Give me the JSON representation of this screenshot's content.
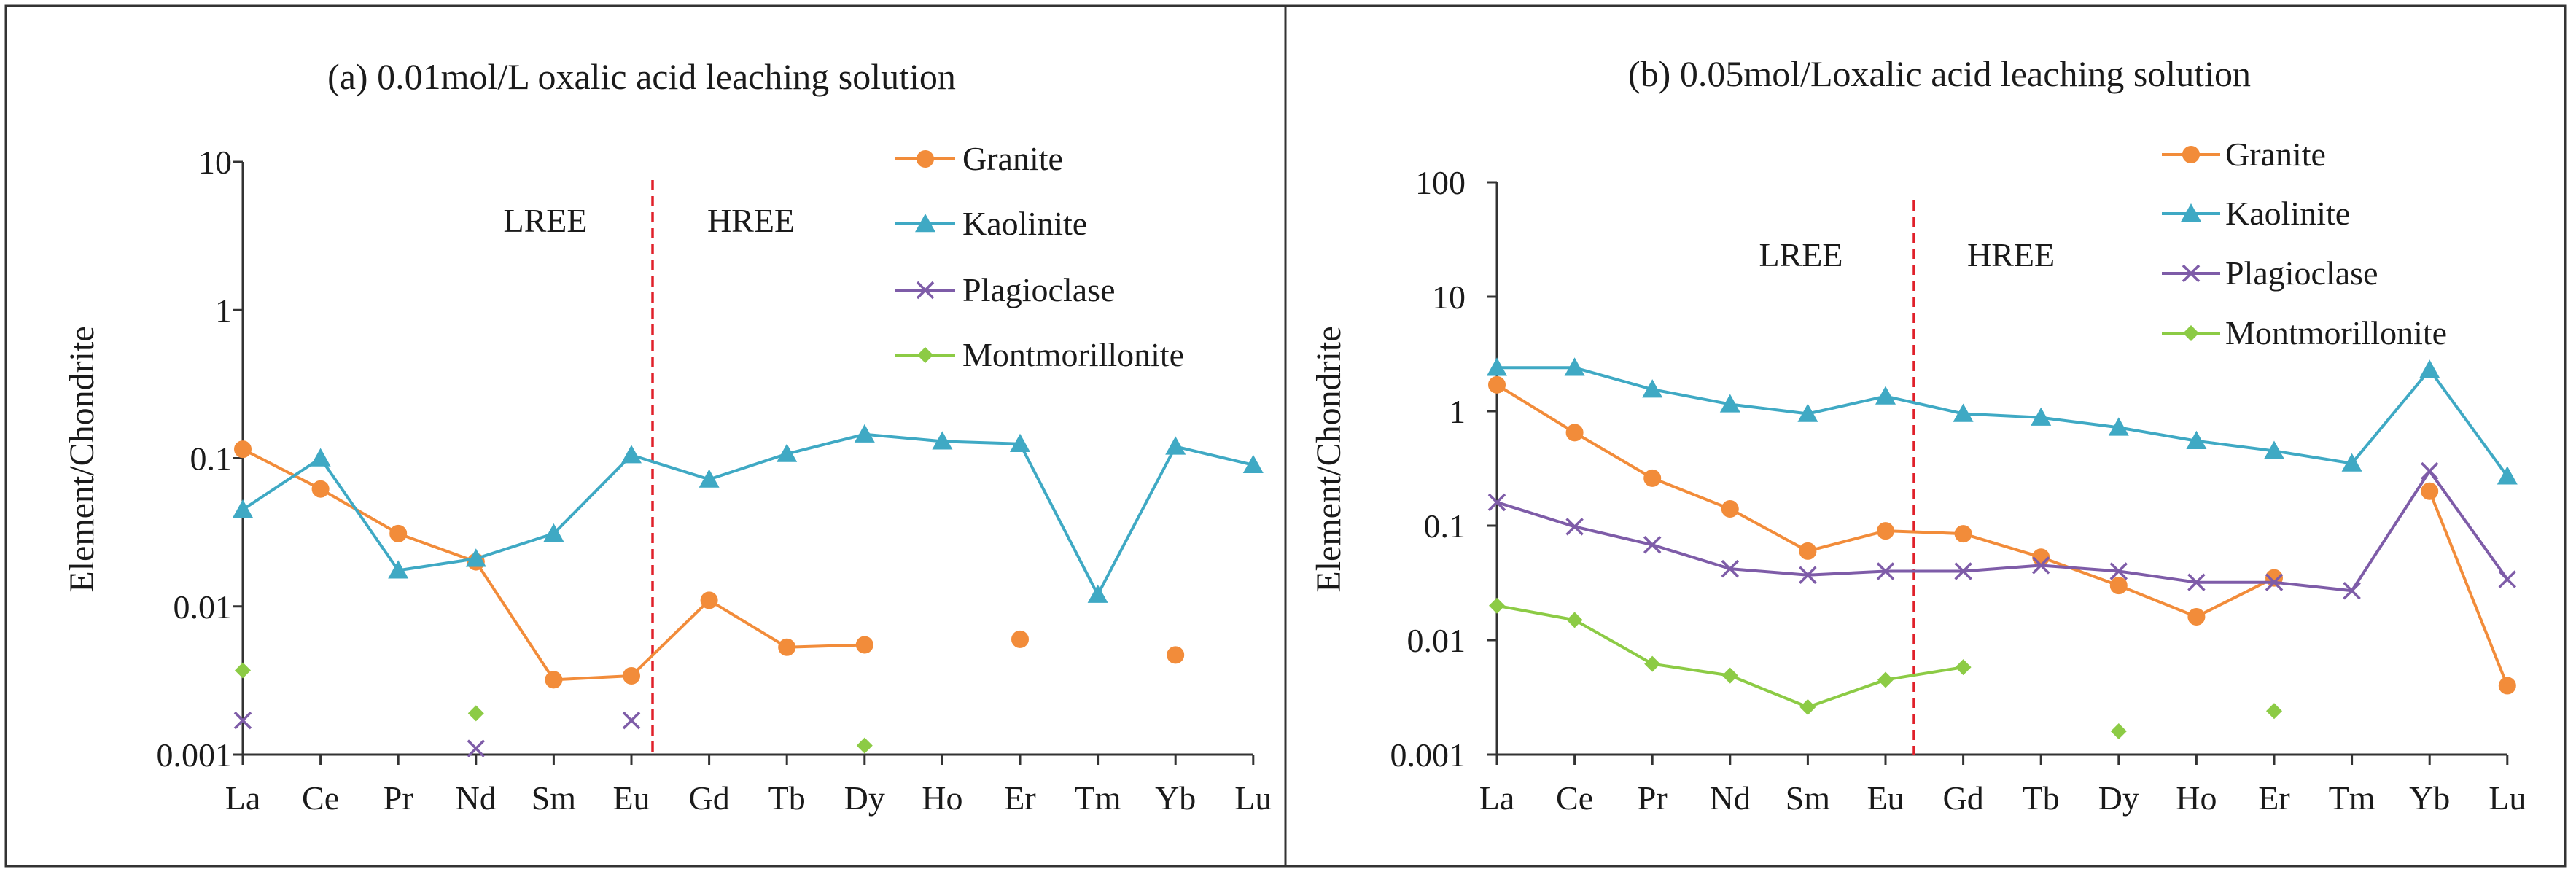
{
  "colors": {
    "granite": "#F28C3A",
    "kaolinite": "#3FA9C4",
    "plagioclase": "#7E5CA8",
    "montmorillonite": "#8CCB45",
    "divider": "#E0202A",
    "axis": "#333333"
  },
  "chart_data": [
    {
      "type": "line",
      "panel": "a",
      "title": "(a)  0.01mol/L oxalic acid leaching solution",
      "xlabel": "",
      "ylabel": "Element/Chondrite",
      "yscale": "log",
      "ylim": [
        0.001,
        10
      ],
      "ytick_labels": [
        "0.001",
        "0.01",
        "0.1",
        "1",
        "10"
      ],
      "categories": [
        "La",
        "Ce",
        "Pr",
        "Nd",
        "Sm",
        "Eu",
        "Gd",
        "Tb",
        "Dy",
        "Ho",
        "Er",
        "Tm",
        "Yb",
        "Lu"
      ],
      "legend_position": "top-right",
      "annotations": {
        "left": "LREE",
        "right": "HREE",
        "divider_between": [
          "Eu",
          "Gd"
        ]
      },
      "series": [
        {
          "name": "Granite",
          "key": "granite",
          "marker": "circle",
          "values": [
            0.115,
            0.062,
            0.031,
            0.02,
            0.0032,
            0.0034,
            0.011,
            0.0053,
            0.0055,
            null,
            0.006,
            null,
            0.0047,
            null
          ]
        },
        {
          "name": "Kaolinite",
          "key": "kaolinite",
          "marker": "triangle",
          "values": [
            0.045,
            0.1,
            0.0175,
            0.021,
            0.031,
            0.105,
            0.072,
            0.107,
            0.145,
            0.13,
            0.125,
            0.012,
            0.12,
            0.09
          ]
        },
        {
          "name": "Plagioclase",
          "key": "plagioclase",
          "marker": "x",
          "values": [
            0.0017,
            null,
            null,
            0.0011,
            null,
            0.0017,
            null,
            null,
            null,
            null,
            null,
            null,
            null,
            null
          ]
        },
        {
          "name": "Montmorillonite",
          "key": "montmorillonite",
          "marker": "diamond",
          "values": [
            0.0037,
            null,
            null,
            0.0019,
            null,
            null,
            null,
            null,
            0.00115,
            null,
            null,
            null,
            null,
            null
          ]
        }
      ]
    },
    {
      "type": "line",
      "panel": "b",
      "title": "(b)  0.05mol/Loxalic acid leaching solution",
      "xlabel": "",
      "ylabel": "Element/Chondrite",
      "yscale": "log",
      "ylim": [
        0.001,
        100
      ],
      "ytick_labels": [
        "0.001",
        "0.01",
        "0.1",
        "1",
        "10",
        "100"
      ],
      "categories": [
        "La",
        "Ce",
        "Pr",
        "Nd",
        "Sm",
        "Eu",
        "Gd",
        "Tb",
        "Dy",
        "Ho",
        "Er",
        "Tm",
        "Yb",
        "Lu"
      ],
      "legend_position": "top-right",
      "annotations": {
        "left": "LREE",
        "right": "HREE",
        "divider_between": [
          "Eu",
          "Gd"
        ]
      },
      "series": [
        {
          "name": "Granite",
          "key": "granite",
          "marker": "circle",
          "values": [
            1.7,
            0.65,
            0.26,
            0.14,
            0.06,
            0.09,
            0.085,
            0.053,
            0.03,
            0.016,
            0.035,
            null,
            0.2,
            0.004
          ]
        },
        {
          "name": "Kaolinite",
          "key": "kaolinite",
          "marker": "triangle",
          "values": [
            2.4,
            2.4,
            1.55,
            1.15,
            0.95,
            1.35,
            0.95,
            0.88,
            0.72,
            0.55,
            0.45,
            0.35,
            2.3,
            0.27
          ]
        },
        {
          "name": "Plagioclase",
          "key": "plagioclase",
          "marker": "x",
          "values": [
            0.16,
            0.098,
            0.068,
            0.042,
            0.037,
            0.04,
            0.04,
            0.045,
            0.04,
            0.032,
            0.032,
            0.027,
            0.3,
            0.034
          ]
        },
        {
          "name": "Montmorillonite",
          "key": "montmorillonite",
          "marker": "diamond",
          "values": [
            0.02,
            0.015,
            0.0062,
            0.0049,
            0.0026,
            0.0045,
            0.0058,
            null,
            0.0016,
            null,
            0.0024,
            null,
            null,
            null
          ]
        }
      ]
    }
  ]
}
